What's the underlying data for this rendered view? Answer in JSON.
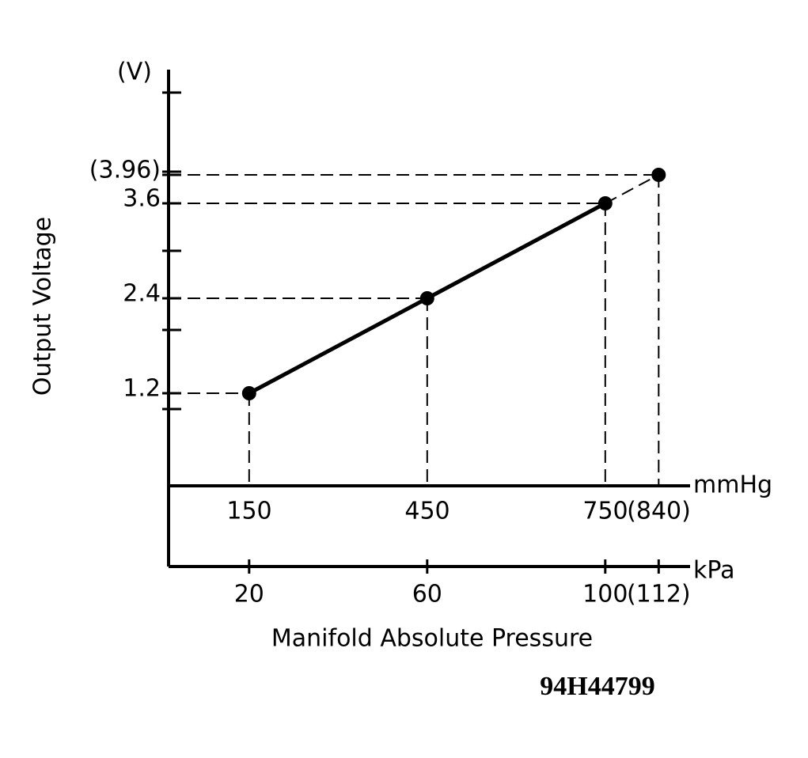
{
  "chart_data": {
    "type": "line",
    "y_unit": "(V)",
    "y_label": "Output Voltage",
    "x_label": "Manifold Absolute Pressure",
    "x_unit": "kPa",
    "x2_unit": "mmHg",
    "figure_id": "94H44799",
    "x": [
      20,
      60,
      100,
      112
    ],
    "series": [
      {
        "color": "#000000",
        "values": [
          1.2,
          2.4,
          3.6,
          3.96
        ],
        "segment_styles": [
          "solid",
          "solid",
          "dashed"
        ]
      }
    ],
    "xlim": [
      1.9,
      118.7
    ],
    "xticks": [
      20,
      60,
      100,
      {
        "value": 112,
        "label": "(112)"
      }
    ],
    "x2lim": [
      14,
      890
    ],
    "x2ticks": [
      150,
      450,
      750,
      {
        "value": 840,
        "label": "(840)"
      }
    ],
    "ylim": [
      0,
      5.28
    ],
    "yticks": [
      1.2,
      2.4,
      3.6,
      {
        "value": 3.96,
        "label": "(3.96)"
      }
    ],
    "minor_yticks": [
      1,
      2,
      3,
      4,
      5
    ],
    "guide_lines": true
  }
}
